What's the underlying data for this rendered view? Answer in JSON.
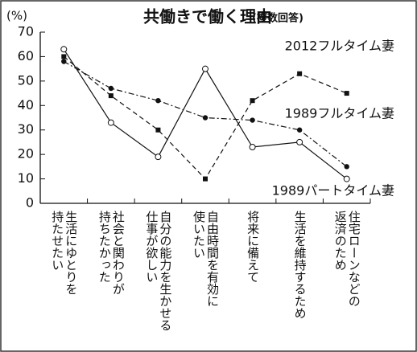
{
  "chart_data": {
    "type": "line",
    "title": "共働きで働く理由",
    "subtitle": "(複数回答)",
    "y_label": "(%)",
    "categories": [
      "生活にゆとりを\n持たせたい",
      "社会と関わりが\n持ちたかった",
      "自分の能力を生かせる\n仕事が欲しい",
      "自由時間を有効に\n使いたい",
      "将来に備えて",
      "生活を維持するため",
      "住宅ローンなどの\n返済のため"
    ],
    "series": [
      {
        "name": "2012フルタイム妻",
        "color": "#111111",
        "line_style": "dashed",
        "marker": "square",
        "values": [
          60,
          44,
          30,
          10,
          42,
          53,
          45
        ]
      },
      {
        "name": "1989フルタイム妻",
        "color": "#111111",
        "line_style": "dashdot",
        "marker": "circle",
        "values": [
          58,
          47,
          42,
          35,
          34,
          30,
          15
        ]
      },
      {
        "name": "1989パートタイム妻",
        "color": "#111111",
        "line_style": "solid",
        "marker": "open-circle",
        "values": [
          63,
          33,
          19,
          55,
          23,
          25,
          10
        ]
      }
    ],
    "ylim": [
      0,
      70
    ],
    "yticks": [
      0,
      10,
      20,
      30,
      40,
      50,
      60,
      70
    ],
    "grid": false
  }
}
